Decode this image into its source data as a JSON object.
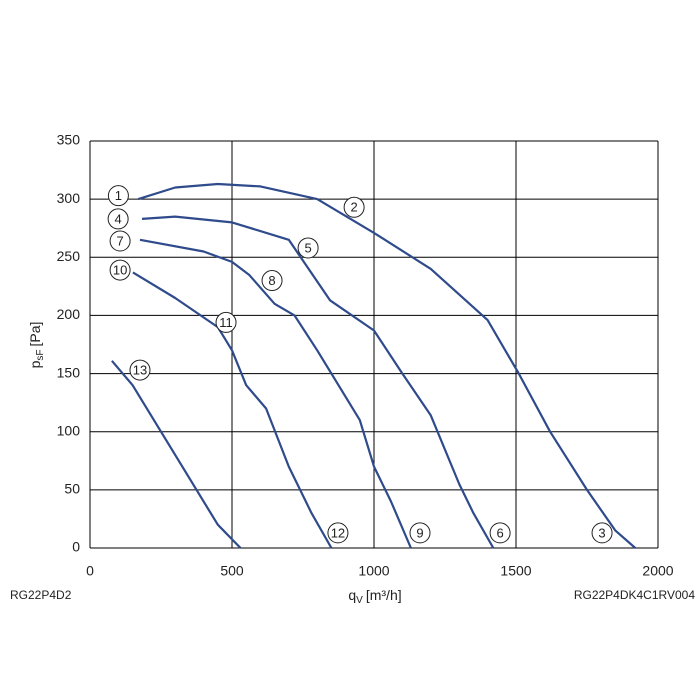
{
  "chart_data": {
    "type": "line",
    "x_label": {
      "symbol": "q",
      "subscript": "V",
      "unit": "[m³/h]"
    },
    "y_label": {
      "symbol": "p",
      "subscript": "sF",
      "unit": "[Pa]"
    },
    "footer_left": "RG22P4D2",
    "footer_right": "RG22P4DK4C1RV004",
    "xlim": [
      0,
      2000
    ],
    "xticks": [
      0,
      500,
      1000,
      1500,
      2000
    ],
    "ylim": [
      0,
      350
    ],
    "yticks": [
      0,
      50,
      100,
      150,
      200,
      250,
      300,
      350
    ],
    "grid": true,
    "series": [
      {
        "color": "#2f4b8c",
        "x": [
          170,
          300,
          450,
          600,
          800,
          1000,
          1200,
          1400,
          1510,
          1620,
          1750,
          1850,
          1920
        ],
        "values": [
          300,
          310,
          313,
          311,
          300,
          271,
          240,
          196,
          150,
          100,
          50,
          15,
          0
        ]
      },
      {
        "color": "#2f4b8c",
        "x": [
          183,
          300,
          500,
          700,
          845,
          1000,
          1100,
          1200,
          1300,
          1350,
          1420
        ],
        "values": [
          283,
          285,
          280,
          265,
          213,
          187,
          150,
          114,
          55,
          30,
          0
        ]
      },
      {
        "color": "#2f4b8c",
        "x": [
          176,
          400,
          500,
          560,
          650,
          720,
          800,
          900,
          950,
          1000,
          1060,
          1130
        ],
        "values": [
          265,
          255,
          246,
          235,
          210,
          200,
          170,
          130,
          110,
          70,
          40,
          0
        ]
      },
      {
        "color": "#2f4b8c",
        "x": [
          151,
          300,
          450,
          500,
          550,
          620,
          700,
          780,
          850
        ],
        "values": [
          237,
          215,
          190,
          170,
          140,
          120,
          70,
          30,
          0
        ]
      },
      {
        "color": "#2f4b8c",
        "x": [
          77,
          150,
          250,
          350,
          450,
          530
        ],
        "values": [
          161,
          140,
          100,
          60,
          20,
          0
        ]
      }
    ],
    "annotations": [
      {
        "text": "1",
        "x": 100,
        "y": 303
      },
      {
        "text": "2",
        "x": 930,
        "y": 293
      },
      {
        "text": "3",
        "x": 1803,
        "y": 13
      },
      {
        "text": "4",
        "x": 99,
        "y": 283
      },
      {
        "text": "5",
        "x": 768,
        "y": 258
      },
      {
        "text": "6",
        "x": 1444,
        "y": 13
      },
      {
        "text": "7",
        "x": 106,
        "y": 264
      },
      {
        "text": "8",
        "x": 641,
        "y": 230
      },
      {
        "text": "9",
        "x": 1162,
        "y": 13
      },
      {
        "text": "10",
        "x": 106,
        "y": 239
      },
      {
        "text": "11",
        "x": 479,
        "y": 194
      },
      {
        "text": "12",
        "x": 873,
        "y": 13
      },
      {
        "text": "13",
        "x": 176,
        "y": 153
      }
    ]
  }
}
